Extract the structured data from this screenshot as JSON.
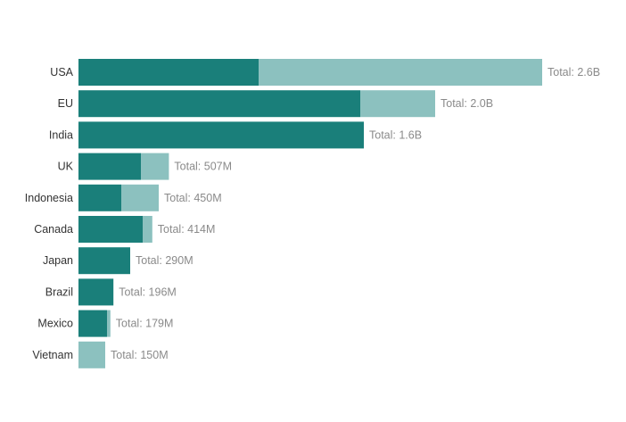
{
  "chart_data": {
    "type": "bar",
    "orientation": "horizontal",
    "stacked": true,
    "categories": [
      "USA",
      "EU",
      "India",
      "UK",
      "Indonesia",
      "Canada",
      "Japan",
      "Brazil",
      "Mexico",
      "Vietnam"
    ],
    "series": [
      {
        "values": [
          1.01,
          1.58,
          1.6,
          0.35,
          0.24,
          0.36,
          0.29,
          0.196,
          0.16,
          0.0
        ]
      },
      {
        "values": [
          1.59,
          0.42,
          0.0,
          0.157,
          0.21,
          0.054,
          0.0,
          0.0,
          0.019,
          0.15
        ]
      }
    ],
    "totals": [
      2.6,
      2.0,
      1.6,
      0.507,
      0.45,
      0.414,
      0.29,
      0.196,
      0.179,
      0.15
    ],
    "total_labels": [
      "Total: 2.6B",
      "Total: 2.0B",
      "Total: 1.6B",
      "Total: 507M",
      "Total: 450M",
      "Total: 414M",
      "Total: 290M",
      "Total: 196M",
      "Total: 179M",
      "Total: 150M"
    ],
    "xlim": [
      0,
      2.6
    ],
    "grid": false,
    "legend": "none",
    "title": "",
    "xlabel": "",
    "ylabel": "",
    "colors": {
      "series_0": "#1a7f7a",
      "series_1": "#8cc1bf",
      "category_label": "#333333",
      "total_label": "#8a8a8a"
    }
  }
}
